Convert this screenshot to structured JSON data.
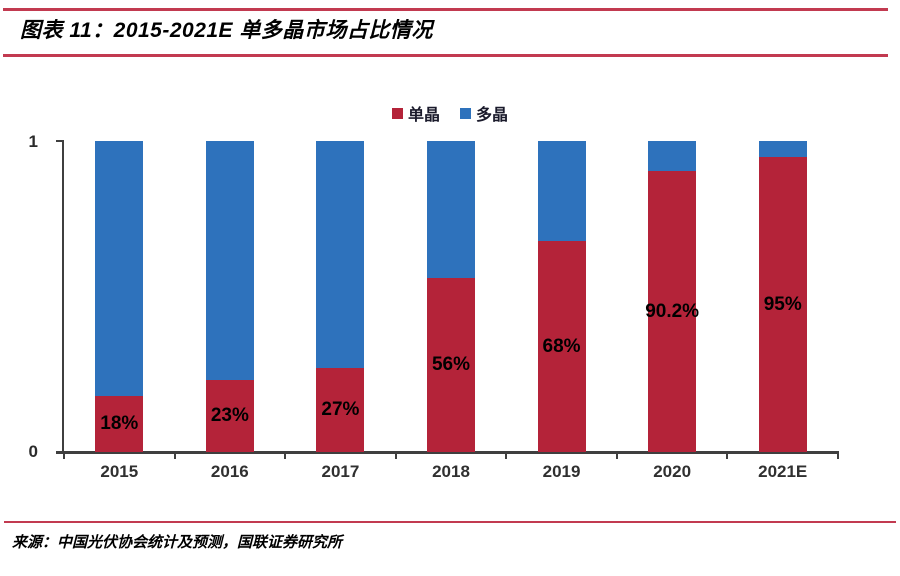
{
  "page": {
    "title": "图表 11：2015-2021E 单多晶市场占比情况",
    "source": "来源：中国光伏协会统计及预测，国联证券研究所",
    "accent_color": "#c23a50"
  },
  "chart_data": {
    "type": "bar",
    "stacked": true,
    "title": "2015-2021E 单多晶市场占比情况",
    "categories": [
      "2015",
      "2016",
      "2017",
      "2018",
      "2019",
      "2020",
      "2021E"
    ],
    "series": [
      {
        "name": "单晶",
        "color": "#b42339",
        "values": [
          0.18,
          0.23,
          0.27,
          0.56,
          0.68,
          0.902,
          0.95
        ]
      },
      {
        "name": "多晶",
        "color": "#2e72bc",
        "values": [
          0.82,
          0.77,
          0.73,
          0.44,
          0.32,
          0.098,
          0.05
        ]
      }
    ],
    "data_labels": [
      "18%",
      "23%",
      "27%",
      "56%",
      "68%",
      "90.2%",
      "95%"
    ],
    "xlabel": "",
    "ylabel": "",
    "ylim": [
      0,
      1
    ],
    "yticks": [
      "0",
      "1"
    ],
    "grid": false,
    "legend_position": "top-center"
  }
}
